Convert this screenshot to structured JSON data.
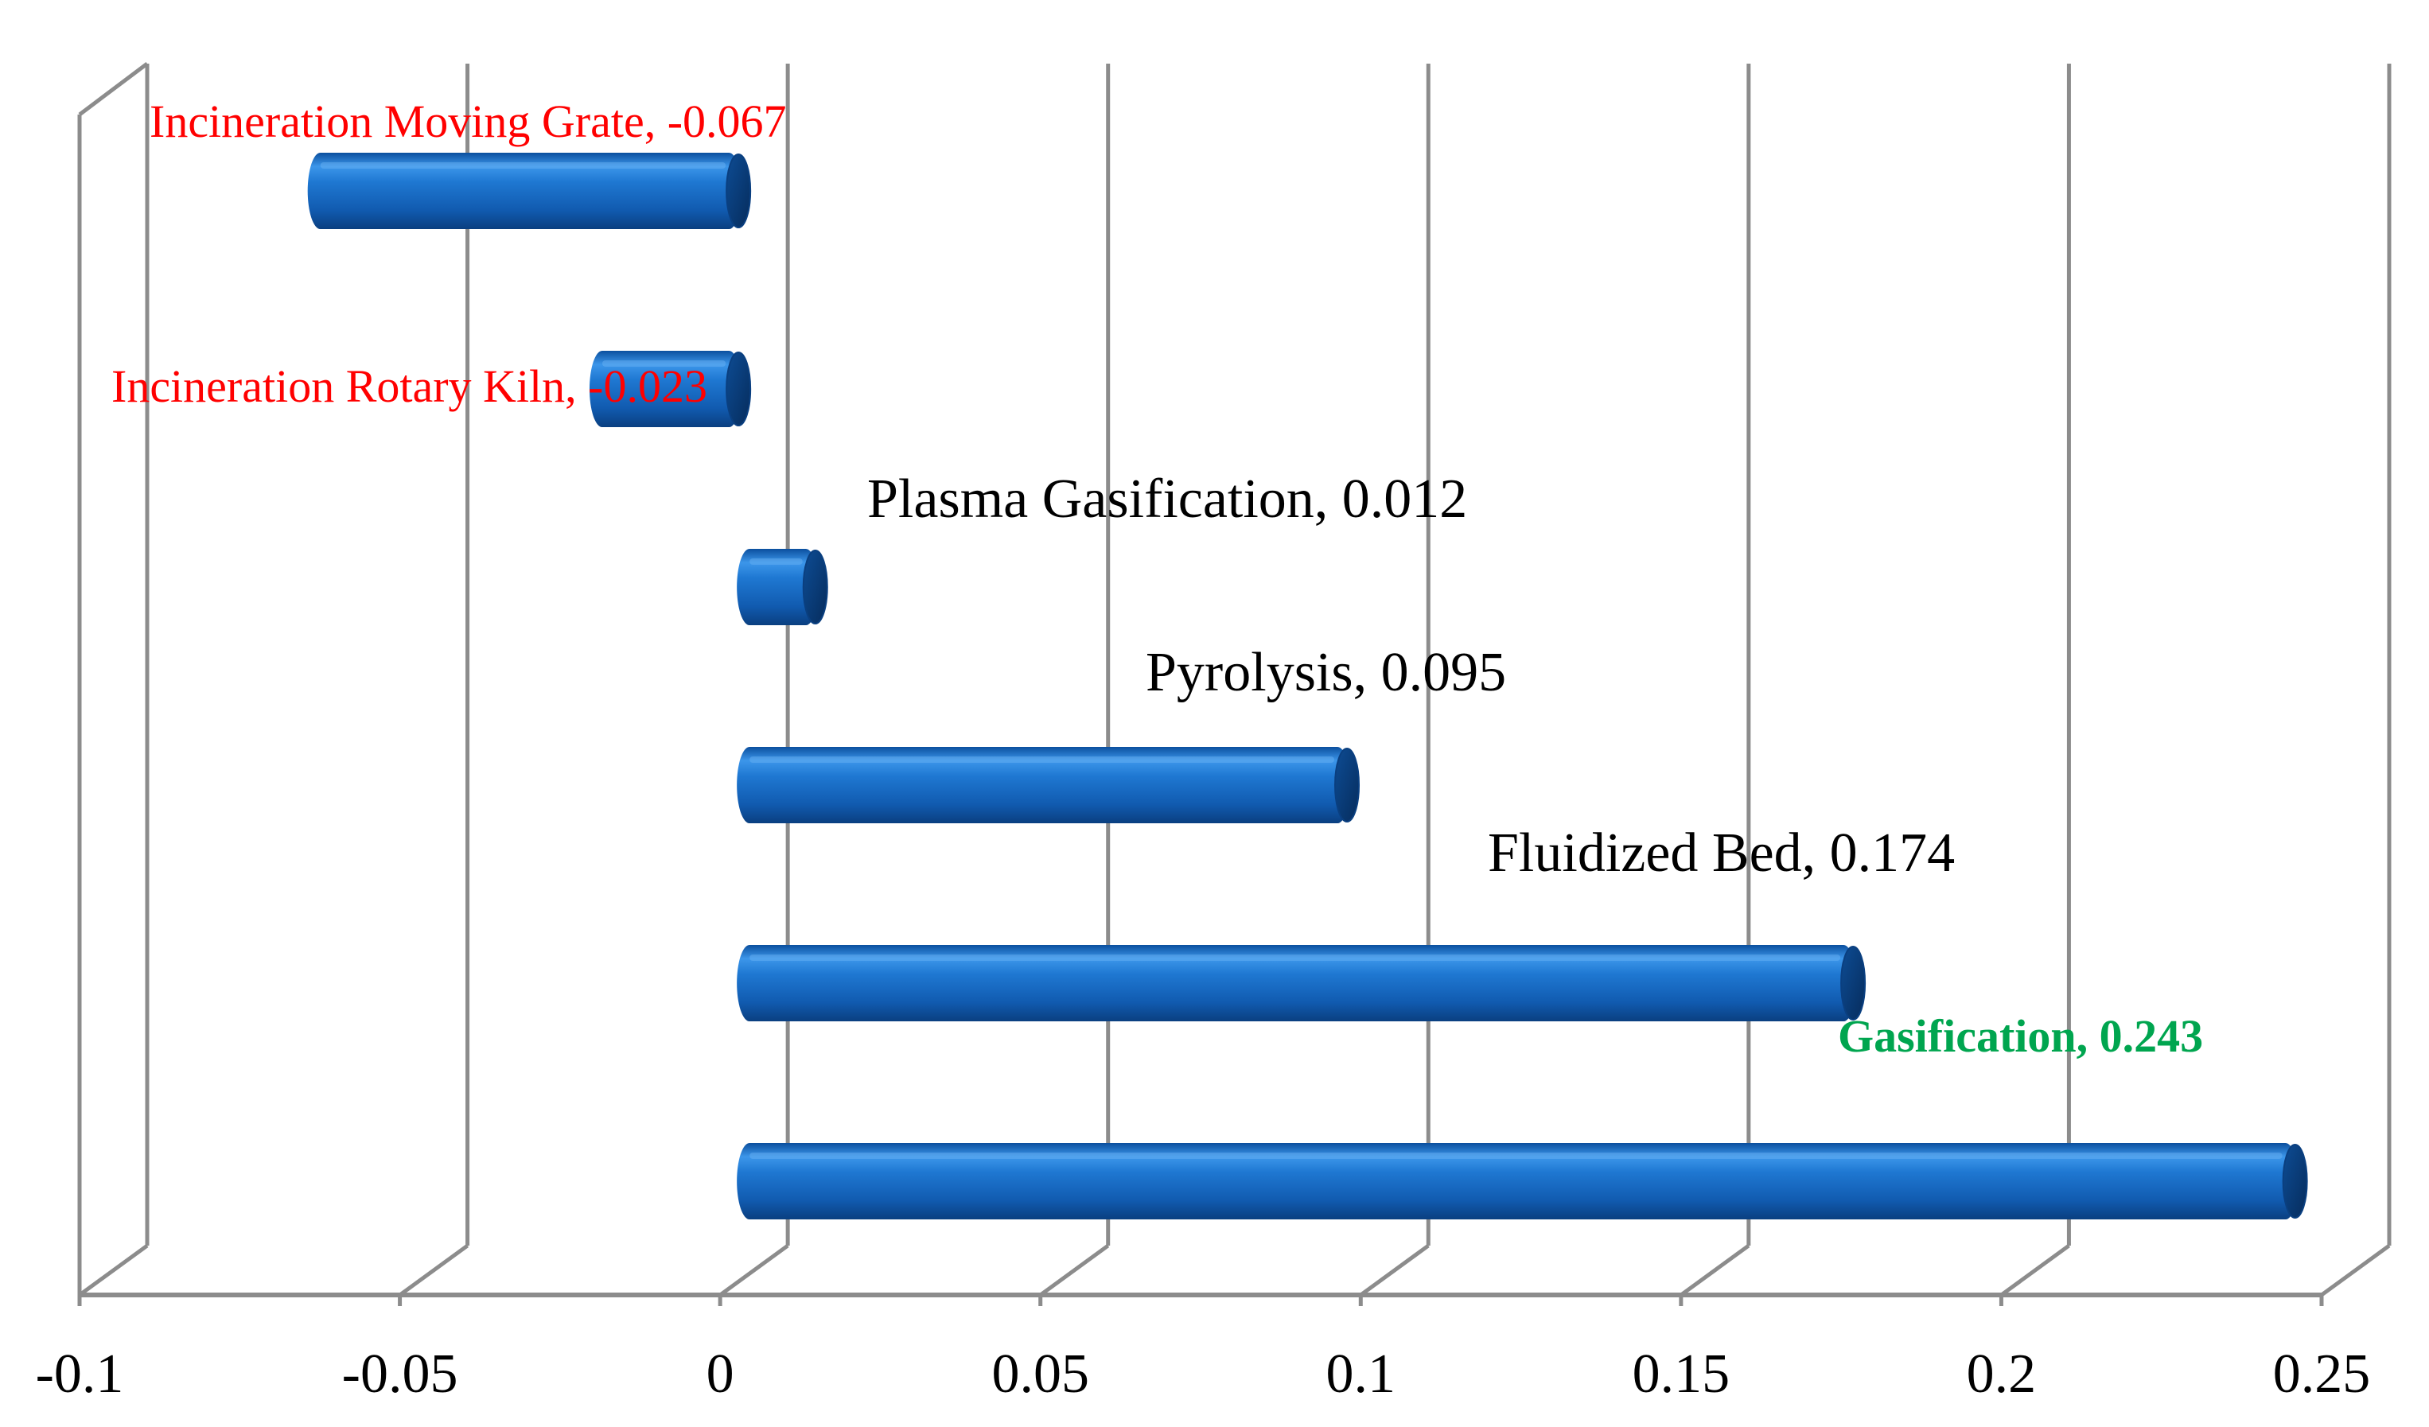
{
  "chart_data": {
    "type": "bar",
    "orientation": "horizontal",
    "style": "3d-cylinder",
    "xlim": [
      -0.1,
      0.25
    ],
    "ticks": [
      -0.1,
      -0.05,
      0,
      0.05,
      0.1,
      0.15,
      0.2,
      0.25
    ],
    "tick_labels": [
      "-0.1",
      "-0.05",
      "0",
      "0.05",
      "0.1",
      "0.15",
      "0.2",
      "0.25"
    ],
    "bar_color": "#1f73c8",
    "grid": true,
    "series": [
      {
        "name": "Incineration Moving Grate",
        "value": -0.067,
        "label": "Incineration Moving Grate, -0.067",
        "label_color": "#ff0000"
      },
      {
        "name": "Incineration Rotary Kiln",
        "value": -0.023,
        "label": "Incineration Rotary Kiln, -0.023",
        "label_color": "#ff0000"
      },
      {
        "name": "Plasma Gasification",
        "value": 0.012,
        "label": "Plasma Gasification, 0.012",
        "label_color": "#000000"
      },
      {
        "name": "Pyrolysis",
        "value": 0.095,
        "label": "Pyrolysis, 0.095",
        "label_color": "#000000"
      },
      {
        "name": "Fluidized Bed",
        "value": 0.174,
        "label": "Fluidized Bed, 0.174",
        "label_color": "#000000"
      },
      {
        "name": "Gasification",
        "value": 0.243,
        "label": "Gasification, 0.243",
        "label_color": "#00a54f"
      }
    ]
  }
}
